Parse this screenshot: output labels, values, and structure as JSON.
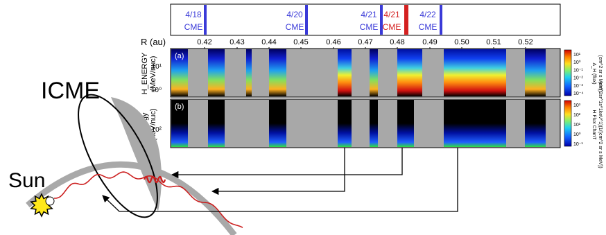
{
  "labels": {
    "icme": "ICME",
    "sun": "Sun",
    "r_axis": "R (au)",
    "panel_a": "(a)",
    "panel_b": "(b)",
    "ylabel_a_line1": "H_ENERGY",
    "ylabel_a_line2": "(MeV/nuc)",
    "ylabel_b_line1": "Energy",
    "ylabel_b_line2": "(keV/nuc)",
    "cbar_a_line1": "A_H (flux)",
    "cbar_a_line2": "(cm^2 sr s MeV))",
    "cbar_b_line1": "H Flux ChanT",
    "cbar_b_line2": "(cm^2sr^1s^1keV^1)(1/(cm^2 sr s MeV))"
  },
  "cme_events": [
    {
      "date": "4/18",
      "tag": "CME",
      "color": "#3a3ad8"
    },
    {
      "date": "4/20",
      "tag": "CME",
      "color": "#3a3ad8"
    },
    {
      "date": "4/21",
      "tag": "CME",
      "color": "#3a3ad8"
    },
    {
      "date": "4/21",
      "tag": "CME",
      "color": "#d42020"
    },
    {
      "date": "4/22",
      "tag": "CME",
      "color": "#3a3ad8"
    }
  ],
  "r_ticks": [
    "0.42",
    "0.43",
    "0.44",
    "0.45",
    "0.46",
    "0.47",
    "0.48",
    "0.49",
    "0.50",
    "0.51",
    "0.52"
  ],
  "panel_a_yticks": [
    "10¹",
    "10⁰"
  ],
  "panel_b_yticks": [
    "10²"
  ],
  "cbar_a_ticks": [
    "10¹",
    "10⁰",
    "10⁻¹",
    "10⁻²",
    "10⁻³",
    "10⁻⁴"
  ],
  "cbar_b_ticks": [
    "10³",
    "10²",
    "10¹",
    "10⁰",
    "10⁻¹"
  ],
  "colors": {
    "gap_gray": "#a8a8a8",
    "black": "#000000",
    "field_line": "#cc1f1f",
    "sun_fill": "#ffe81a",
    "icme_shadow": "#a9a9a9"
  }
}
